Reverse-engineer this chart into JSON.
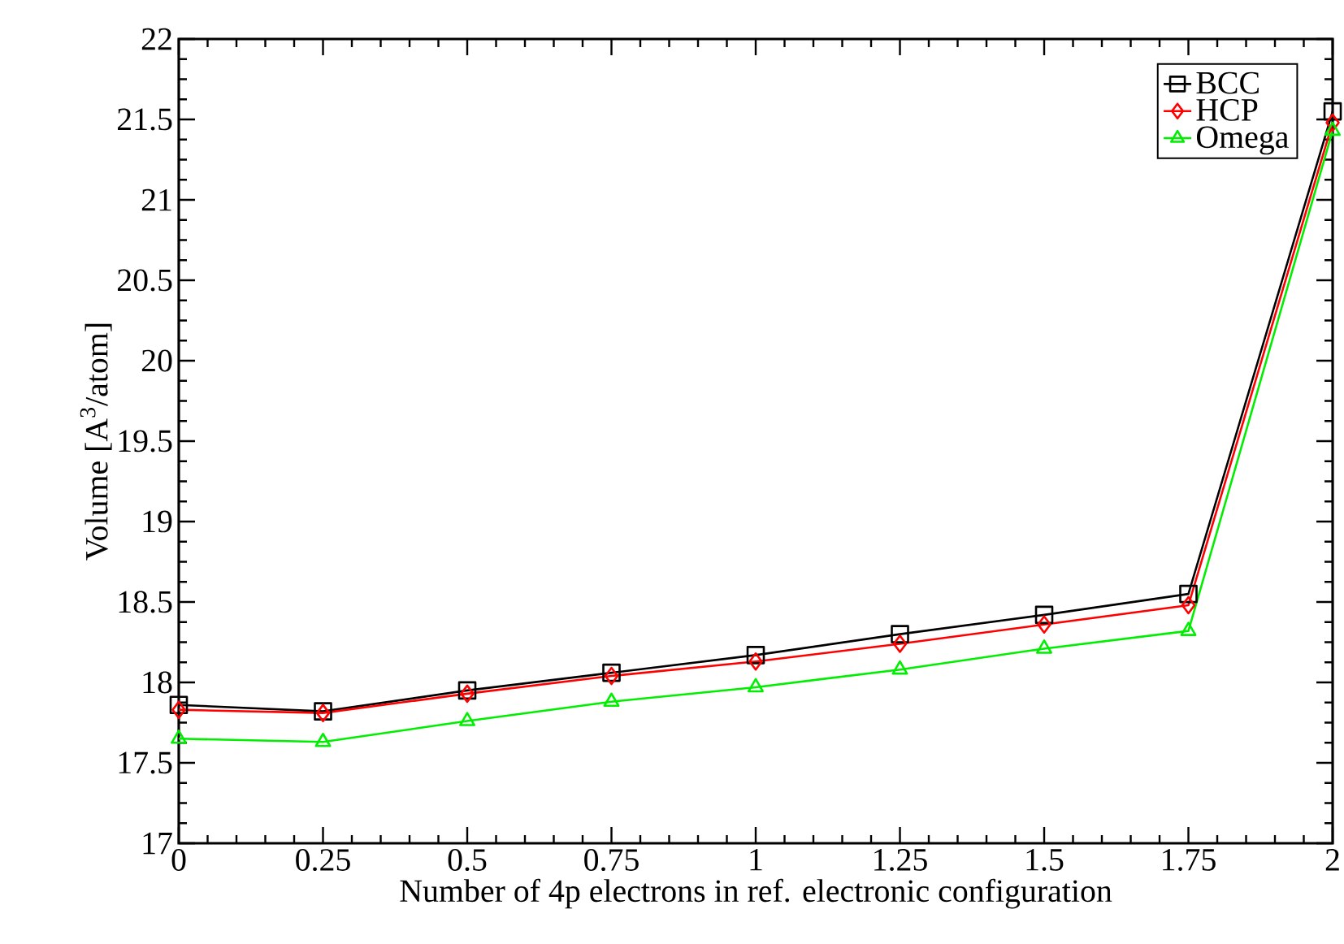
{
  "chart_data": {
    "type": "line",
    "xlabel": "Number of 4p electrons in ref. electronic configuration",
    "ylabel": "Volume [A$^{3}$/atom]",
    "x": [
      0,
      0.25,
      0.5,
      0.75,
      1,
      1.25,
      1.5,
      1.75,
      2
    ],
    "series": [
      {
        "name": "BCC",
        "color": "#000000",
        "marker": "square",
        "values": [
          17.86,
          17.82,
          17.95,
          18.06,
          18.17,
          18.3,
          18.42,
          18.55,
          21.55
        ]
      },
      {
        "name": "HCP",
        "color": "#ff0000",
        "marker": "diamond",
        "values": [
          17.83,
          17.81,
          17.93,
          18.04,
          18.13,
          18.24,
          18.36,
          18.48,
          21.48
        ]
      },
      {
        "name": "Omega",
        "color": "#00ee00",
        "marker": "triangle",
        "values": [
          17.65,
          17.63,
          17.76,
          17.88,
          17.97,
          18.08,
          18.21,
          18.32,
          21.43
        ]
      }
    ],
    "xlim": [
      0,
      2
    ],
    "xticks": [
      0,
      0.25,
      0.5,
      0.75,
      1,
      1.25,
      1.5,
      1.75,
      2
    ],
    "ylim": [
      17,
      22
    ],
    "yticks": [
      17,
      17.5,
      18,
      18.5,
      19,
      19.5,
      20,
      20.5,
      21,
      21.5,
      22
    ],
    "grid": false,
    "legend": "top right",
    "line_style": "solid"
  }
}
